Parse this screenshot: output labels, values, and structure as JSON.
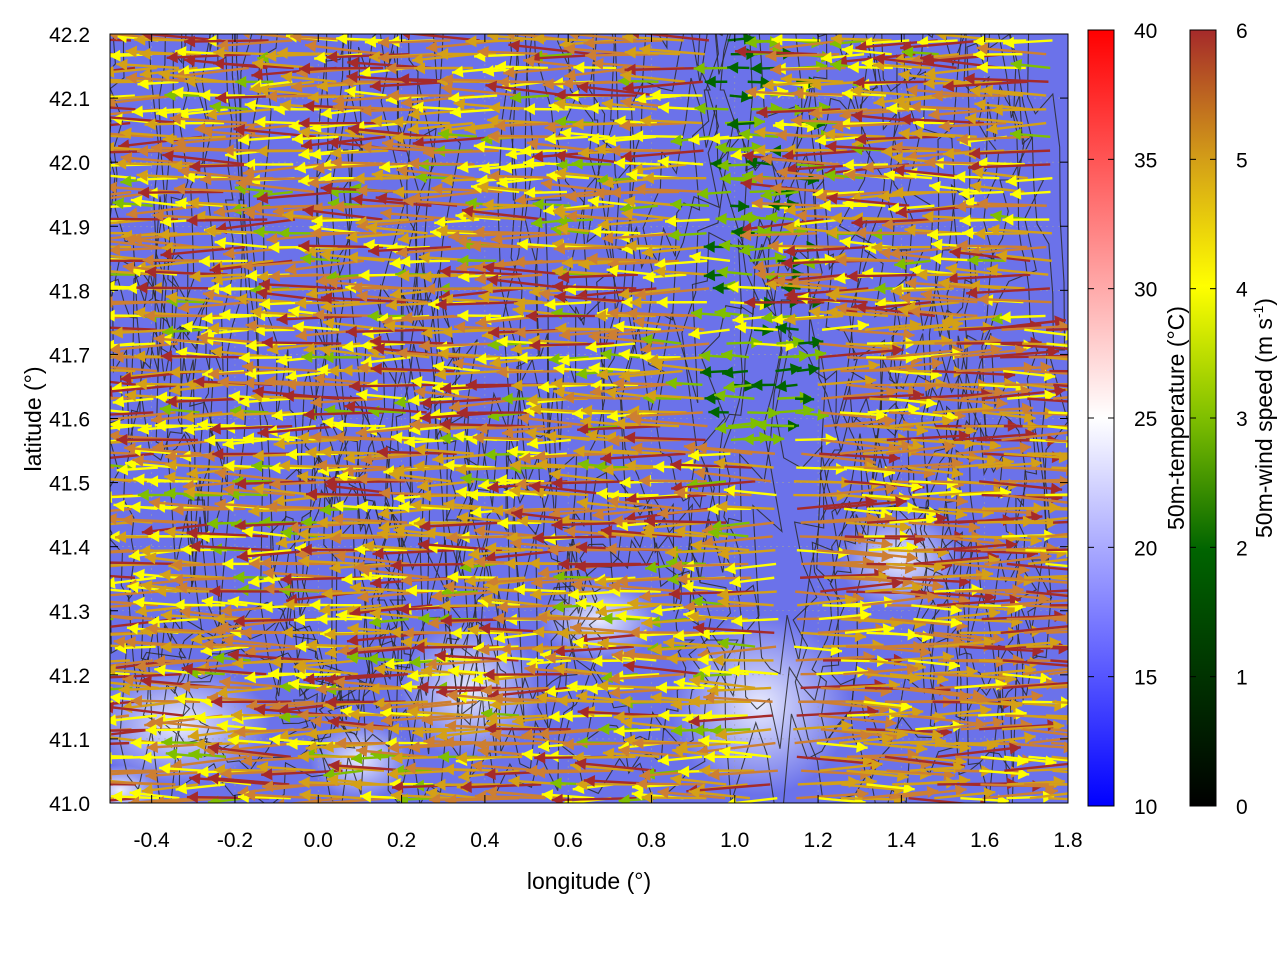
{
  "chart_data": {
    "type": "vector-field",
    "xlabel": "longitude (°)",
    "ylabel": "latitude (°)",
    "xlim": [
      -0.5,
      1.8
    ],
    "ylim": [
      41.0,
      42.2
    ],
    "xticks": [
      "-0.4",
      "-0.2",
      "0.0",
      "0.2",
      "0.4",
      "0.6",
      "0.8",
      "1.0",
      "1.2",
      "1.4",
      "1.6",
      "1.8"
    ],
    "yticks": [
      "41.0",
      "41.1",
      "41.2",
      "41.3",
      "41.4",
      "41.5",
      "41.6",
      "41.7",
      "41.8",
      "41.9",
      "42.0",
      "42.1",
      "42.2"
    ],
    "grid": true,
    "background_field": {
      "name": "50m-temperature (°C)",
      "range": [
        10,
        40
      ],
      "ticks": [
        "10",
        "15",
        "20",
        "25",
        "30",
        "35",
        "40"
      ],
      "colors": [
        "#0000ff",
        "#ffffff",
        "#ff0000"
      ],
      "approx_value": 18
    },
    "vector_field": {
      "name": "50m-wind speed (m s-1)",
      "label_text": "50m-wind speed (m s",
      "label_sup": "-1",
      "label_close": ")",
      "range": [
        0,
        6
      ],
      "ticks": [
        "0",
        "1",
        "2",
        "3",
        "4",
        "5",
        "6"
      ],
      "colors": [
        "#000000",
        "#006400",
        "#7fbf00",
        "#ffff00",
        "#d4a017",
        "#cd7f32",
        "#a52a2a"
      ],
      "pattern": "westward flow over the western part of the domain, weak flow near longitude 1.0–1.2, eastward flow over the southeastern part"
    },
    "contours": "terrain elevation contours, dark gray, no labels"
  }
}
